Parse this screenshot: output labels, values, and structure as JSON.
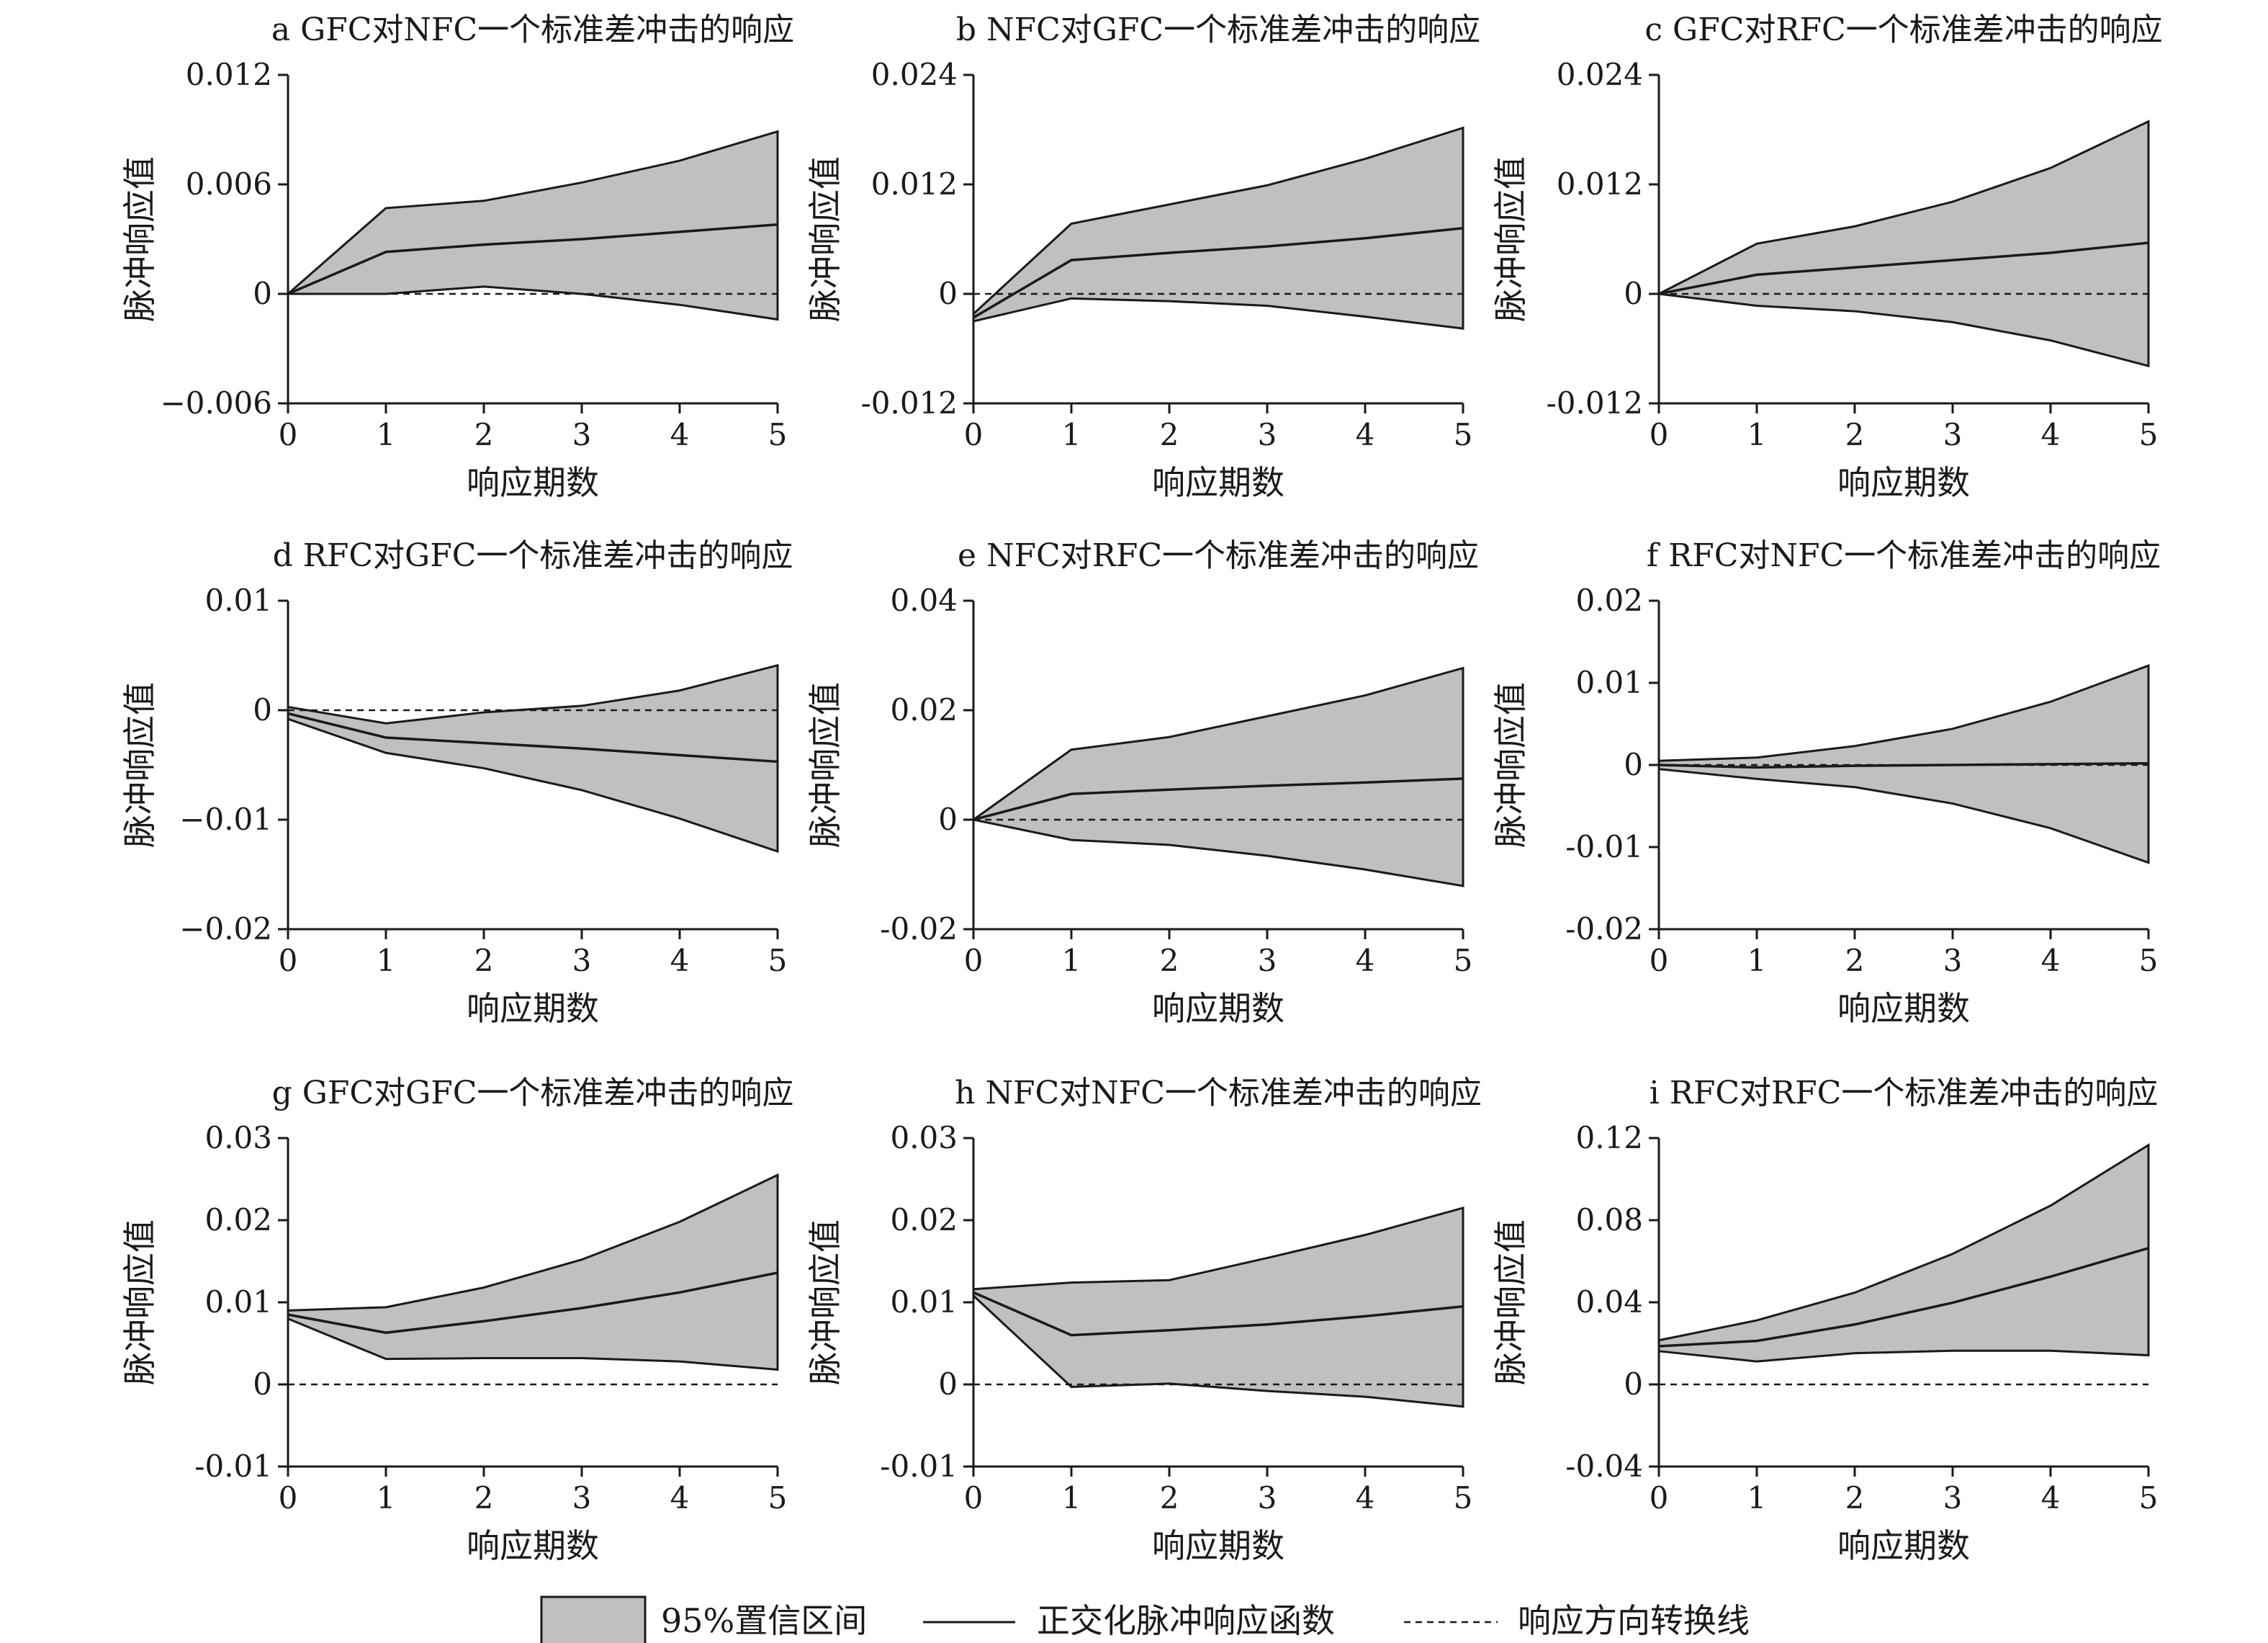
{
  "legend": {
    "band": "95%置信区间",
    "line": "正交化脉冲响应函数",
    "dashed": "响应方向转换线"
  },
  "colors": {
    "band": "#c0c0c0",
    "line": "#1a1a1a",
    "axis": "#1a1a1a"
  },
  "chart_data": [
    {
      "type": "line",
      "title": "a GFC对NFC一个标准差冲击的响应",
      "xlabel": "响应期数",
      "ylabel": "脉冲响应值",
      "x": [
        0,
        1,
        2,
        3,
        4,
        5
      ],
      "ylim": [
        -0.006,
        0.012
      ],
      "yticks": [
        -0.006,
        0,
        0.006,
        0.012
      ],
      "yticklabels": [
        "−0.006",
        "0",
        "0.006",
        "0.012"
      ],
      "xticklabels": [
        "0",
        "1",
        "2",
        "3",
        "4",
        "5"
      ],
      "upper": [
        0,
        0.0047,
        0.0051,
        0.0061,
        0.0073,
        0.0089
      ],
      "irf": [
        0,
        0.0023,
        0.0027,
        0.003,
        0.0034,
        0.0038
      ],
      "lower": [
        0,
        0,
        0.0004,
        0,
        -0.0006,
        -0.0014
      ]
    },
    {
      "type": "line",
      "title": "b NFC对GFC一个标准差冲击的响应",
      "xlabel": "响应期数",
      "ylabel": "脉冲响应值",
      "x": [
        0,
        1,
        2,
        3,
        4,
        5
      ],
      "ylim": [
        -0.012,
        0.024
      ],
      "yticks": [
        -0.012,
        0,
        0.012,
        0.024
      ],
      "yticklabels": [
        "-0.012",
        "0",
        "0.012",
        "0.024"
      ],
      "xticklabels": [
        "0",
        "1",
        "2",
        "3",
        "4",
        "5"
      ],
      "upper": [
        -0.0022,
        0.0077,
        0.0098,
        0.0119,
        0.0148,
        0.0182
      ],
      "irf": [
        -0.0026,
        0.0037,
        0.0045,
        0.0052,
        0.0061,
        0.0072
      ],
      "lower": [
        -0.003,
        -0.0005,
        -0.0008,
        -0.0013,
        -0.0025,
        -0.0038
      ]
    },
    {
      "type": "line",
      "title": "c GFC对RFC一个标准差冲击的响应",
      "xlabel": "响应期数",
      "ylabel": "脉冲响应值",
      "x": [
        0,
        1,
        2,
        3,
        4,
        5
      ],
      "ylim": [
        -0.012,
        0.024
      ],
      "yticks": [
        -0.012,
        0,
        0.012,
        0.024
      ],
      "yticklabels": [
        "-0.012",
        "0",
        "0.012",
        "0.024"
      ],
      "xticklabels": [
        "0",
        "1",
        "2",
        "3",
        "4",
        "5"
      ],
      "upper": [
        0,
        0.0055,
        0.0074,
        0.0101,
        0.0138,
        0.0189
      ],
      "irf": [
        0,
        0.0021,
        0.0029,
        0.0037,
        0.0045,
        0.0056
      ],
      "lower": [
        0,
        -0.0013,
        -0.0019,
        -0.0031,
        -0.0051,
        -0.0079
      ]
    },
    {
      "type": "line",
      "title": "d RFC对GFC一个标准差冲击的响应",
      "xlabel": "响应期数",
      "ylabel": "脉冲响应值",
      "x": [
        0,
        1,
        2,
        3,
        4,
        5
      ],
      "ylim": [
        -0.02,
        0.01
      ],
      "yticks": [
        -0.02,
        -0.01,
        0,
        0.01
      ],
      "yticklabels": [
        "−0.02",
        "−0.01",
        "0",
        "0.01"
      ],
      "xticklabels": [
        "0",
        "1",
        "2",
        "3",
        "4",
        "5"
      ],
      "upper": [
        0.0003,
        -0.0012,
        -0.0002,
        0.0004,
        0.0018,
        0.0041
      ],
      "irf": [
        -0.0003,
        -0.0025,
        -0.003,
        -0.0035,
        -0.0041,
        -0.0047
      ],
      "lower": [
        -0.0008,
        -0.0039,
        -0.0053,
        -0.0073,
        -0.0099,
        -0.0129
      ]
    },
    {
      "type": "line",
      "title": "e NFC对RFC一个标准差冲击的响应",
      "xlabel": "响应期数",
      "ylabel": "脉冲响应值",
      "x": [
        0,
        1,
        2,
        3,
        4,
        5
      ],
      "ylim": [
        -0.02,
        0.04
      ],
      "yticks": [
        -0.02,
        0,
        0.02,
        0.04
      ],
      "yticklabels": [
        "-0.02",
        "0",
        "0.02",
        "0.04"
      ],
      "xticklabels": [
        "0",
        "1",
        "2",
        "3",
        "4",
        "5"
      ],
      "upper": [
        0,
        0.0128,
        0.0151,
        0.0189,
        0.0227,
        0.0277
      ],
      "irf": [
        0,
        0.0047,
        0.0055,
        0.0062,
        0.0068,
        0.0075
      ],
      "lower": [
        0,
        -0.0037,
        -0.0046,
        -0.0066,
        -0.0091,
        -0.0121
      ]
    },
    {
      "type": "line",
      "title": "f RFC对NFC一个标准差冲击的响应",
      "xlabel": "响应期数",
      "ylabel": "脉冲响应值",
      "x": [
        0,
        1,
        2,
        3,
        4,
        5
      ],
      "ylim": [
        -0.02,
        0.02
      ],
      "yticks": [
        -0.02,
        -0.01,
        0,
        0.01,
        0.02
      ],
      "yticklabels": [
        "-0.02",
        "-0.01",
        "0",
        "0.01",
        "0.02"
      ],
      "xticklabels": [
        "0",
        "1",
        "2",
        "3",
        "4",
        "5"
      ],
      "upper": [
        0.0005,
        0.0009,
        0.0023,
        0.0044,
        0.0077,
        0.0121
      ],
      "irf": [
        0,
        -0.0003,
        -0.0001,
        0,
        0.0001,
        0.0002
      ],
      "lower": [
        -0.0005,
        -0.0017,
        -0.0027,
        -0.0047,
        -0.0077,
        -0.0119
      ]
    },
    {
      "type": "line",
      "title": "g GFC对GFC一个标准差冲击的响应",
      "xlabel": "响应期数",
      "ylabel": "脉冲响应值",
      "x": [
        0,
        1,
        2,
        3,
        4,
        5
      ],
      "ylim": [
        -0.01,
        0.03
      ],
      "yticks": [
        -0.01,
        0,
        0.01,
        0.02,
        0.03
      ],
      "yticklabels": [
        "-0.01",
        "0",
        "0.01",
        "0.02",
        "0.03"
      ],
      "xticklabels": [
        "0",
        "1",
        "2",
        "3",
        "4",
        "5"
      ],
      "upper": [
        0.009,
        0.0094,
        0.0118,
        0.0152,
        0.0198,
        0.0255
      ],
      "irf": [
        0.0085,
        0.0063,
        0.0077,
        0.0093,
        0.0112,
        0.0136
      ],
      "lower": [
        0.008,
        0.0031,
        0.0032,
        0.0032,
        0.0028,
        0.0018
      ]
    },
    {
      "type": "line",
      "title": "h NFC对NFC一个标准差冲击的响应",
      "xlabel": "响应期数",
      "ylabel": "脉冲响应值",
      "x": [
        0,
        1,
        2,
        3,
        4,
        5
      ],
      "ylim": [
        -0.01,
        0.03
      ],
      "yticks": [
        -0.01,
        0,
        0.01,
        0.02,
        0.03
      ],
      "yticklabels": [
        "-0.01",
        "0",
        "0.01",
        "0.02",
        "0.03"
      ],
      "xticklabels": [
        "0",
        "1",
        "2",
        "3",
        "4",
        "5"
      ],
      "upper": [
        0.0116,
        0.0124,
        0.0127,
        0.0154,
        0.0182,
        0.0215
      ],
      "irf": [
        0.0112,
        0.006,
        0.0066,
        0.0073,
        0.0083,
        0.0095
      ],
      "lower": [
        0.0108,
        -0.0003,
        0.0001,
        -0.0008,
        -0.0015,
        -0.0027
      ]
    },
    {
      "type": "line",
      "title": "i RFC对RFC一个标准差冲击的响应",
      "xlabel": "响应期数",
      "ylabel": "脉冲响应值",
      "x": [
        0,
        1,
        2,
        3,
        4,
        5
      ],
      "ylim": [
        -0.04,
        0.12
      ],
      "yticks": [
        -0.04,
        0,
        0.04,
        0.08,
        0.12
      ],
      "yticklabels": [
        "-0.04",
        "0",
        "0.04",
        "0.08",
        "0.12"
      ],
      "xticklabels": [
        "0",
        "1",
        "2",
        "3",
        "4",
        "5"
      ],
      "upper": [
        0.0215,
        0.0312,
        0.0447,
        0.0636,
        0.0871,
        0.1166
      ],
      "irf": [
        0.0186,
        0.0212,
        0.0292,
        0.0398,
        0.0525,
        0.0664
      ],
      "lower": [
        0.0162,
        0.0112,
        0.0152,
        0.0164,
        0.0164,
        0.0142
      ]
    }
  ]
}
